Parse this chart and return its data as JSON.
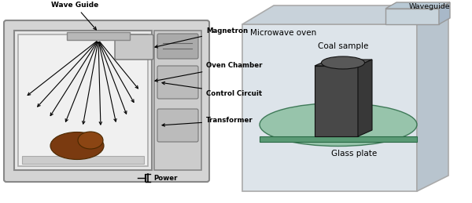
{
  "bg_color": "#ffffff",
  "fig_width": 6.0,
  "fig_height": 2.59,
  "dpi": 100,
  "left_panel": {
    "labels": {
      "wave_guide": "Wave Guide",
      "magnetron": "Magnetron",
      "oven_chamber": "Oven Chamber",
      "control_circuit": "Control Circuit",
      "transformer": "Transformer",
      "power": "Power"
    },
    "outer_color": "#d4d4d4",
    "inner_color": "#e8e8e8",
    "inner2_color": "#f0f0f0",
    "border_color": "#888888",
    "panel_color": "#cccccc",
    "btn_color": "#b8b8b8"
  },
  "right_panel": {
    "labels": {
      "microwave_oven": "Microwave oven",
      "waveguide": "Waveguide",
      "coal_sample": "Coal sample",
      "glass_plate": "Glass plate"
    },
    "front_color": "#dde4ea",
    "top_color": "#c8d2da",
    "right_color": "#b8c4ce",
    "wg_front_color": "#c8d4dc",
    "wg_top_color": "#b8c8d4",
    "wg_right_color": "#a8b8c8",
    "glass_top_color": "#8bbfa0",
    "glass_side_color": "#5a9a75",
    "coal_front_color": "#484848",
    "coal_top_color": "#585858",
    "coal_right_color": "#383838"
  }
}
